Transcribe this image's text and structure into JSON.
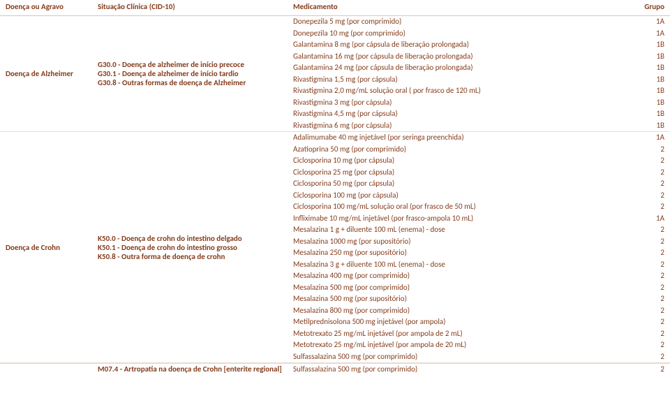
{
  "headers": {
    "doenca": "Doença ou Agravo",
    "cid": "Situação Clínica (CID-10)",
    "med": "Medicamento",
    "grupo": "Grupo"
  },
  "sections": [
    {
      "doenca": "Doença de Alzheimer",
      "cid": [
        "G30.0 - Doença de alzheimer de início precoce",
        "G30.1 - Doença de alzheimer de início tardio",
        "G30.8 - Outras formas de doença de Alzheimer"
      ],
      "meds": [
        {
          "name": "Donepezila 5 mg (por comprimido)",
          "grupo": "1A"
        },
        {
          "name": "Donepezila 10 mg (por comprimido)",
          "grupo": "1A"
        },
        {
          "name": "Galantamina 8 mg (por cápsula de liberação prolongada)",
          "grupo": "1B"
        },
        {
          "name": "Galantamina 16 mg (por cápsula de liberação prolongada)",
          "grupo": "1B"
        },
        {
          "name": "Galantamina 24 mg (por cápsula de liberação prolongada)",
          "grupo": "1B"
        },
        {
          "name": "Rivastigmina 1,5 mg (por cápsula)",
          "grupo": "1B"
        },
        {
          "name": "Rivastigmina 2,0 mg/mL solução oral ( por frasco de 120 mL)",
          "grupo": "1B"
        },
        {
          "name": "Rivastigmina 3 mg (por cápsula)",
          "grupo": "1B"
        },
        {
          "name": "Rivastigmina 4,5 mg (por cápsula)",
          "grupo": "1B"
        },
        {
          "name": "Rivastigmina 6 mg (por cápsula)",
          "grupo": "1B"
        }
      ]
    },
    {
      "doenca": "Doença de Crohn",
      "cid": [
        "K50.0 - Doença de crohn do intestino delgado",
        "K50.1 - Doença de crohn do intestino grosso",
        "K50.8 - Outra forma de doença de crohn"
      ],
      "meds": [
        {
          "name": "Adalimumabe 40 mg injetável (por seringa preenchida)",
          "grupo": "1A"
        },
        {
          "name": "Azatioprina 50 mg (por comprimido)",
          "grupo": "2"
        },
        {
          "name": "Ciclosporina 10 mg (por cápsula)",
          "grupo": "2"
        },
        {
          "name": "Ciclosporina 25 mg (por cápsula)",
          "grupo": "2"
        },
        {
          "name": "Ciclosporina 50 mg (por cápsula)",
          "grupo": "2"
        },
        {
          "name": "Ciclosporina 100 mg (por cápsula)",
          "grupo": "2"
        },
        {
          "name": "Ciclosporina 100 mg/mL solução oral (por frasco de 50 mL)",
          "grupo": "2"
        },
        {
          "name": "Infliximabe 10 mg/mL injetável (por frasco-ampola 10 mL)",
          "grupo": "1A"
        },
        {
          "name": "Mesalazina 1 g + diluente 100 mL (enema) - dose",
          "grupo": "2"
        },
        {
          "name": "Mesalazina 1000 mg (por supositório)",
          "grupo": "2"
        },
        {
          "name": "Mesalazina 250 mg (por supositório)",
          "grupo": "2"
        },
        {
          "name": "Mesalazina 3 g + diluente 100 mL (enema) - dose",
          "grupo": "2"
        },
        {
          "name": "Mesalazina 400 mg (por comprimido)",
          "grupo": "2"
        },
        {
          "name": "Mesalazina 500 mg (por comprimido)",
          "grupo": "2"
        },
        {
          "name": "Mesalazina 500 mg (por supositório)",
          "grupo": "2"
        },
        {
          "name": "Mesalazina 800 mg (por comprimido)",
          "grupo": "2"
        },
        {
          "name": "Metilprednisolona 500 mg injetável (por ampola)",
          "grupo": "2"
        },
        {
          "name": "Metotrexato 25 mg/mL injetável (por ampola de 2 mL)",
          "grupo": "2"
        },
        {
          "name": "Metotrexato 25 mg/mL injetável (por ampola de 20 mL)",
          "grupo": "2"
        },
        {
          "name": "Sulfassalazina 500 mg (por comprimido)",
          "grupo": "2"
        }
      ]
    }
  ],
  "extra": {
    "cid": "M07.4 - Artropatia na doença de Crohn [enterite regional]",
    "med": {
      "name": "Sulfassalazina 500 mg (por comprimido)",
      "grupo": "2"
    }
  }
}
